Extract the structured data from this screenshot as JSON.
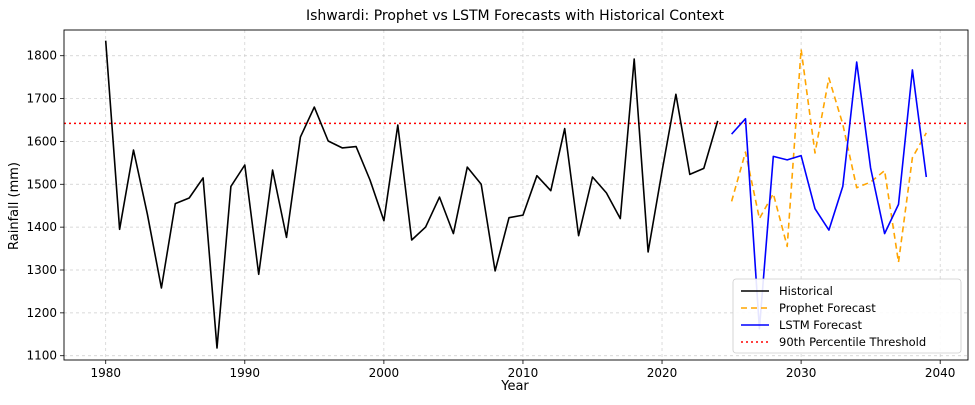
{
  "chart_data": {
    "type": "line",
    "title": "Ishwardi: Prophet vs LSTM Forecasts with Historical Context",
    "xlabel": "Year",
    "ylabel": "Rainfall (mm)",
    "xlim": [
      1977,
      2042
    ],
    "ylim": [
      1090,
      1860
    ],
    "x_ticks": [
      1980,
      1990,
      2000,
      2010,
      2020,
      2030,
      2040
    ],
    "y_ticks": [
      1100,
      1200,
      1300,
      1400,
      1500,
      1600,
      1700,
      1800
    ],
    "grid": true,
    "legend_position": "bottom-right",
    "series": [
      {
        "name": "Historical",
        "color": "#000000",
        "dash": "solid",
        "x": [
          1980,
          1981,
          1982,
          1983,
          1984,
          1985,
          1986,
          1987,
          1988,
          1989,
          1990,
          1991,
          1992,
          1993,
          1994,
          1995,
          1996,
          1997,
          1998,
          1999,
          2000,
          2001,
          2002,
          2003,
          2004,
          2005,
          2006,
          2007,
          2008,
          2009,
          2010,
          2011,
          2012,
          2013,
          2014,
          2015,
          2016,
          2017,
          2018,
          2019,
          2020,
          2021,
          2022,
          2023,
          2024
        ],
        "y": [
          1835,
          1395,
          1580,
          1430,
          1258,
          1455,
          1468,
          1515,
          1118,
          1495,
          1545,
          1290,
          1533,
          1376,
          1610,
          1680,
          1601,
          1585,
          1588,
          1510,
          1415,
          1638,
          1370,
          1400,
          1470,
          1385,
          1540,
          1500,
          1298,
          1422,
          1428,
          1520,
          1485,
          1630,
          1380,
          1517,
          1480,
          1420,
          1792,
          1342,
          1530,
          1710,
          1523,
          1537,
          1648
        ]
      },
      {
        "name": "Prophet Forecast",
        "color": "#ffa500",
        "dash": "dashed",
        "x": [
          2025,
          2026,
          2027,
          2028,
          2029,
          2030,
          2031,
          2032,
          2033,
          2034,
          2035,
          2036,
          2037,
          2038,
          2039
        ],
        "y": [
          1460,
          1575,
          1420,
          1478,
          1355,
          1815,
          1573,
          1748,
          1640,
          1492,
          1505,
          1532,
          1318,
          1562,
          1620
        ]
      },
      {
        "name": "LSTM Forecast",
        "color": "#0000ff",
        "dash": "solid",
        "x": [
          2025,
          2026,
          2027,
          2028,
          2029,
          2030,
          2031,
          2032,
          2033,
          2034,
          2035,
          2036,
          2037,
          2038,
          2039
        ],
        "y": [
          1617,
          1653,
          1163,
          1565,
          1557,
          1567,
          1443,
          1393,
          1495,
          1785,
          1538,
          1385,
          1453,
          1767,
          1517
        ]
      }
    ],
    "threshold": {
      "name": "90th Percentile Threshold",
      "value": 1642,
      "color": "#ff0000",
      "dash": "dotted"
    }
  }
}
